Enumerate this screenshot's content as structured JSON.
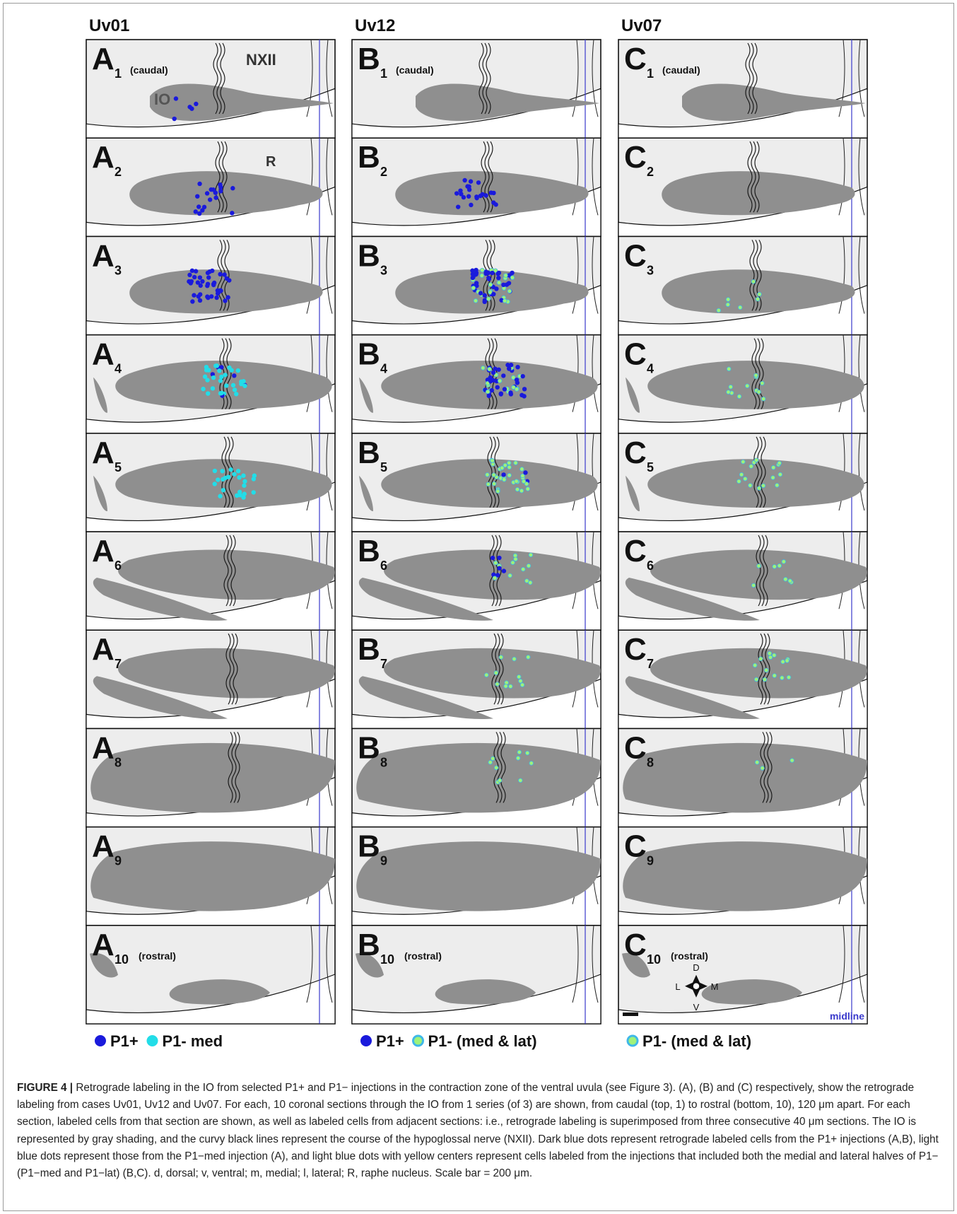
{
  "columns": [
    {
      "id": "A",
      "header": "Uv01",
      "legend": [
        {
          "swatch": "p1plus",
          "label": "P1+"
        },
        {
          "swatch": "p1med",
          "label": "P1- med"
        }
      ]
    },
    {
      "id": "B",
      "header": "Uv12",
      "legend": [
        {
          "swatch": "p1plus",
          "label": "P1+"
        },
        {
          "swatch": "p1medlat",
          "label": "P1- (med & lat)"
        }
      ]
    },
    {
      "id": "C",
      "header": "Uv07",
      "legend": [
        {
          "swatch": "p1medlat",
          "label": "P1- (med & lat)"
        }
      ]
    }
  ],
  "row_notes": {
    "first": "(caudal)",
    "last": "(rostral)"
  },
  "annotations": {
    "io": "IO",
    "nerve": "NXII",
    "raphe": "R",
    "midline": "midline"
  },
  "compass": {
    "d": "D",
    "v": "V",
    "l": "L",
    "m": "M"
  },
  "colors": {
    "p1plus": "#1a1adc",
    "p1med": "#22dde8",
    "p1medlat_fill": "#9ff27a",
    "p1medlat_ring": "#3fb8e8",
    "io": "#8f8f8f",
    "bg": "#ededed",
    "midline": "#3a3acc"
  },
  "caption": {
    "label": "FIGURE 4 |",
    "text": "Retrograde labeling in the IO from selected P1+ and P1− injections in the contraction zone of the ventral uvula (see Figure 3). (A), (B) and (C) respectively, show the retrograde labeling from cases Uv01, Uv12 and Uv07. For each, 10 coronal sections through the IO from 1 series (of 3) are shown, from caudal (top, 1) to rostral (bottom, 10), 120 μm apart. For each section, labeled cells from that section are shown, as well as labeled cells from adjacent sections: i.e., retrograde labeling is superimposed from three consecutive 40 μm sections. The IO is represented by gray shading, and the curvy black lines represent the course of the hypoglossal nerve (NXII). Dark blue dots represent retrograde labeled cells from the P1+ injections (A,B), light blue dots represent those from the P1−med injection (A), and light blue dots with yellow centers represent cells labeled from the injections that included both the medial and lateral halves of P1− (P1−med and P1−lat) (B,C). d, dorsal; v, ventral; m, medial; l, lateral; R, raphe nucleus. Scale bar = 200 μm."
  }
}
